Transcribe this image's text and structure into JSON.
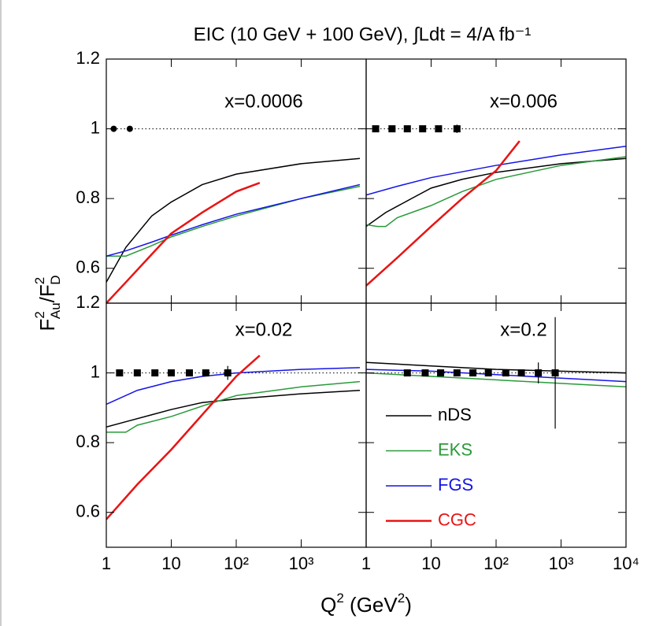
{
  "title": "EIC (10 GeV + 100 GeV),  ∫Ldt =  4/A fb⁻¹",
  "x_label": [
    "Q",
    "2",
    " (GeV",
    "2",
    ")"
  ],
  "y_label": [
    "F",
    "2",
    "Au",
    "/F",
    "2",
    "D"
  ],
  "chart_data": [
    {
      "type": "line",
      "annotation": "x=0.0006",
      "log_x": true,
      "xlim": [
        1,
        10000
      ],
      "ylim": [
        0.5,
        1.2
      ],
      "xticks": [
        1,
        10,
        {
          "value": 100,
          "label": "10²"
        },
        {
          "value": 1000,
          "label": "10³"
        }
      ],
      "yticks": [
        0.6,
        0.8,
        1,
        1.2
      ],
      "ref_line": 1,
      "marker": "circle",
      "series": [
        {
          "name": "nDS",
          "color": "#000000",
          "x": [
            1,
            2,
            5,
            10,
            30,
            100,
            1000,
            8000
          ],
          "values": [
            0.56,
            0.66,
            0.75,
            0.79,
            0.84,
            0.87,
            0.9,
            0.915
          ]
        },
        {
          "name": "EKS",
          "color": "#2a9a3a",
          "x": [
            1,
            2,
            5,
            10,
            30,
            100,
            1000,
            8000
          ],
          "values": [
            0.635,
            0.635,
            0.665,
            0.69,
            0.72,
            0.75,
            0.8,
            0.835
          ]
        },
        {
          "name": "FGS",
          "color": "#1414e6",
          "x": [
            1,
            2,
            5,
            10,
            30,
            100,
            1000,
            8000
          ],
          "values": [
            0.635,
            0.65,
            0.675,
            0.695,
            0.725,
            0.755,
            0.8,
            0.84
          ]
        },
        {
          "name": "CGC",
          "color": "#e81414",
          "x": [
            1,
            2,
            5,
            10,
            30,
            100,
            230
          ],
          "values": [
            0.5,
            0.56,
            0.64,
            0.7,
            0.76,
            0.82,
            0.845
          ]
        }
      ],
      "points": {
        "x": [
          1.3,
          2.3
        ],
        "values": [
          1,
          1
        ]
      }
    },
    {
      "type": "line",
      "annotation": "x=0.006",
      "log_x": true,
      "xlim": [
        1,
        10000
      ],
      "ylim": [
        0.5,
        1.2
      ],
      "xticks": [
        1,
        10,
        {
          "value": 100,
          "label": "10²"
        },
        {
          "value": 1000,
          "label": "10³"
        },
        {
          "value": 10000,
          "label": "10⁴"
        }
      ],
      "yticks": [
        0.6,
        0.8,
        1,
        1.2
      ],
      "ref_line": 1,
      "marker": "square",
      "series": [
        {
          "name": "nDS",
          "color": "#000000",
          "x": [
            1,
            2,
            5,
            10,
            30,
            100,
            1000,
            10000
          ],
          "values": [
            0.72,
            0.76,
            0.8,
            0.83,
            0.855,
            0.875,
            0.9,
            0.915
          ]
        },
        {
          "name": "EKS",
          "color": "#2a9a3a",
          "x": [
            1,
            1.5,
            2,
            3,
            10,
            30,
            100,
            1000,
            10000
          ],
          "values": [
            0.725,
            0.72,
            0.72,
            0.745,
            0.78,
            0.82,
            0.855,
            0.895,
            0.92
          ]
        },
        {
          "name": "FGS",
          "color": "#1414e6",
          "x": [
            1,
            3,
            10,
            100,
            1000,
            10000
          ],
          "values": [
            0.81,
            0.835,
            0.86,
            0.895,
            0.925,
            0.95
          ]
        },
        {
          "name": "CGC",
          "color": "#e81414",
          "x": [
            1,
            3,
            10,
            30,
            100,
            230
          ],
          "values": [
            0.55,
            0.63,
            0.72,
            0.8,
            0.88,
            0.965
          ]
        }
      ],
      "points": {
        "x": [
          1.4,
          2.5,
          4.3,
          7.4,
          13,
          25
        ],
        "values": [
          1,
          1,
          1,
          1,
          1,
          1
        ],
        "errors": [
          0,
          0,
          0,
          0,
          0,
          0.012
        ]
      }
    },
    {
      "type": "line",
      "annotation": "x=0.02",
      "log_x": true,
      "xlim": [
        1,
        10000
      ],
      "ylim": [
        0.5,
        1.2
      ],
      "xticks": [
        1,
        10,
        {
          "value": 100,
          "label": "10²"
        },
        {
          "value": 1000,
          "label": "10³"
        }
      ],
      "yticks": [
        0.6,
        0.8,
        1,
        1.2
      ],
      "ref_line": 1,
      "marker": "square",
      "series": [
        {
          "name": "nDS",
          "color": "#000000",
          "x": [
            1,
            2,
            5,
            10,
            30,
            100,
            1000,
            8000
          ],
          "values": [
            0.845,
            0.86,
            0.88,
            0.895,
            0.915,
            0.925,
            0.94,
            0.95
          ]
        },
        {
          "name": "EKS",
          "color": "#2a9a3a",
          "x": [
            1,
            2,
            3,
            10,
            30,
            100,
            1000,
            8000
          ],
          "values": [
            0.83,
            0.83,
            0.85,
            0.875,
            0.905,
            0.935,
            0.96,
            0.975
          ]
        },
        {
          "name": "FGS",
          "color": "#1414e6",
          "x": [
            1,
            3,
            10,
            30,
            100,
            1000,
            8000
          ],
          "values": [
            0.91,
            0.95,
            0.975,
            0.99,
            1.0,
            1.01,
            1.015
          ]
        },
        {
          "name": "CGC",
          "color": "#e81414",
          "x": [
            1,
            3,
            10,
            30,
            100,
            230
          ],
          "values": [
            0.58,
            0.68,
            0.78,
            0.88,
            0.99,
            1.05
          ]
        }
      ],
      "points": {
        "x": [
          1.6,
          3,
          5.6,
          10,
          19,
          34,
          74
        ],
        "values": [
          1,
          1,
          1,
          1,
          1,
          1,
          1
        ],
        "errors": [
          0,
          0,
          0,
          0,
          0,
          0,
          0.02
        ]
      }
    },
    {
      "type": "line",
      "annotation": "x=0.2",
      "log_x": true,
      "xlim": [
        1,
        10000
      ],
      "ylim": [
        0.5,
        1.2
      ],
      "xticks": [
        1,
        10,
        {
          "value": 100,
          "label": "10²"
        },
        {
          "value": 1000,
          "label": "10³"
        },
        {
          "value": 10000,
          "label": "10⁴"
        }
      ],
      "yticks": [
        0.6,
        0.8,
        1,
        1.2
      ],
      "ref_line": 1,
      "marker": "square",
      "series": [
        {
          "name": "nDS",
          "color": "#000000",
          "x": [
            1,
            10,
            100,
            1000,
            10000
          ],
          "values": [
            1.03,
            1.02,
            1.01,
            1.005,
            1.0
          ]
        },
        {
          "name": "EKS",
          "color": "#2a9a3a",
          "x": [
            1,
            10,
            100,
            1000,
            10000
          ],
          "values": [
            1.0,
            0.99,
            0.98,
            0.97,
            0.96
          ]
        },
        {
          "name": "FGS",
          "color": "#1414e6",
          "x": [
            1,
            10,
            100,
            1000,
            10000
          ],
          "values": [
            1.01,
            1.005,
            0.995,
            0.985,
            0.975
          ]
        }
      ],
      "points": {
        "x": [
          4.3,
          8.1,
          14,
          25,
          44,
          76,
          141,
          245,
          447,
          813
        ],
        "values": [
          1,
          1,
          1,
          1,
          1,
          1,
          1,
          1,
          1,
          1
        ],
        "errors": [
          0,
          0,
          0,
          0,
          0,
          0,
          0,
          0.01,
          0.03,
          0.16
        ]
      }
    }
  ]
}
